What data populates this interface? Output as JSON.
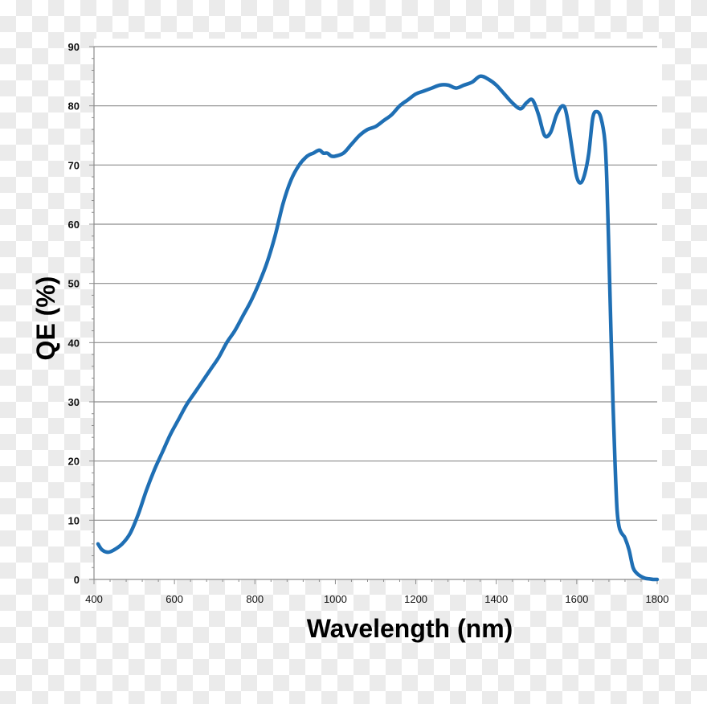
{
  "chart_data": {
    "type": "line",
    "title": "",
    "xlabel": "Wavelength (nm)",
    "ylabel": "QE (%)",
    "xlim": [
      400,
      1800
    ],
    "ylim": [
      0,
      90
    ],
    "x_ticks": [
      400,
      600,
      800,
      1000,
      1200,
      1400,
      1600,
      1800
    ],
    "y_ticks": [
      0,
      10,
      20,
      30,
      40,
      50,
      60,
      70,
      80,
      90
    ],
    "grid": "horizontal",
    "series": [
      {
        "name": "QE",
        "color": "#1f6fb4",
        "x": [
          410,
          420,
          435,
          450,
          470,
          490,
          510,
          530,
          550,
          570,
          590,
          610,
          630,
          650,
          670,
          690,
          710,
          730,
          750,
          770,
          790,
          810,
          830,
          850,
          870,
          890,
          910,
          930,
          945,
          960,
          970,
          980,
          990,
          1000,
          1020,
          1040,
          1060,
          1080,
          1100,
          1120,
          1140,
          1160,
          1180,
          1200,
          1220,
          1240,
          1260,
          1280,
          1300,
          1320,
          1340,
          1360,
          1380,
          1400,
          1420,
          1440,
          1460,
          1475,
          1490,
          1505,
          1520,
          1535,
          1550,
          1565,
          1575,
          1590,
          1600,
          1610,
          1620,
          1630,
          1640,
          1650,
          1660,
          1670,
          1675,
          1680,
          1685,
          1690,
          1695,
          1700,
          1705,
          1710,
          1715,
          1720,
          1730,
          1740,
          1750,
          1760,
          1770,
          1780,
          1790,
          1800
        ],
        "values": [
          6,
          5,
          4.6,
          5,
          6,
          7.8,
          11,
          15,
          18.5,
          21.5,
          24.5,
          27,
          29.5,
          31.5,
          33.5,
          35.5,
          37.5,
          40,
          42,
          44.5,
          47,
          50,
          53.5,
          58,
          63.5,
          67.5,
          70,
          71.5,
          72,
          72.5,
          72,
          72,
          71.5,
          71.5,
          72,
          73.5,
          75,
          76,
          76.5,
          77.5,
          78.5,
          80,
          81,
          82,
          82.5,
          83,
          83.5,
          83.5,
          83,
          83.5,
          84,
          85,
          84.5,
          83.5,
          82,
          80.5,
          79.5,
          80.5,
          81,
          78.5,
          75,
          75.5,
          78.5,
          80,
          78.5,
          72,
          68,
          67,
          68.5,
          72,
          78,
          79,
          78,
          74,
          67,
          55,
          42,
          30,
          20,
          12,
          9,
          8,
          7.5,
          7,
          5,
          2,
          1,
          0.5,
          0.2,
          0.1,
          0,
          0
        ]
      }
    ]
  }
}
